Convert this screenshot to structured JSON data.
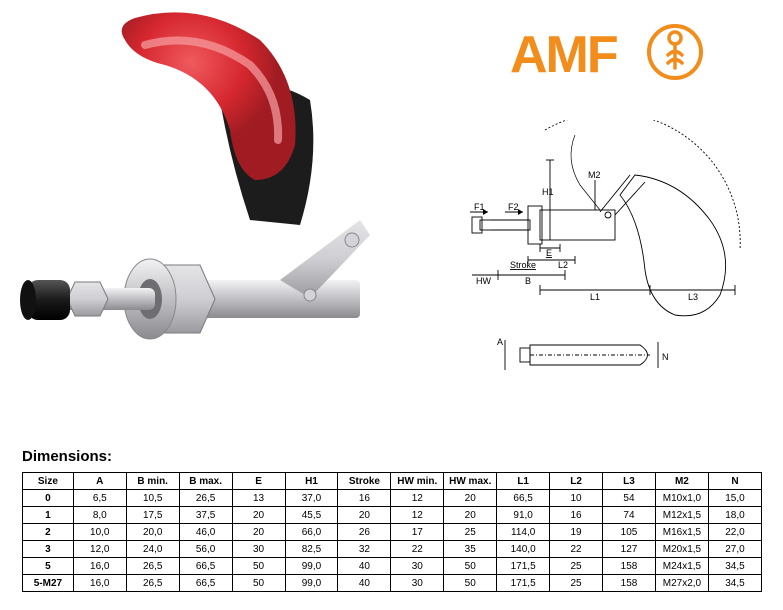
{
  "logo": {
    "text": "AMF",
    "text_color": "#f28c1a",
    "circle_stroke": "#f28c1a",
    "icon_stroke": "#f28c1a",
    "font_family": "Arial Black, Arial, sans-serif"
  },
  "product": {
    "handle_color": "#d6272f",
    "grip_color": "#1a1a1a",
    "metal_light": "#e8e8ea",
    "metal_mid": "#b9b9bd",
    "metal_dark": "#8d8d92",
    "tip_color": "#2a2a2a",
    "rivet_color": "#c4c4c8"
  },
  "drawing": {
    "line_color": "#000000",
    "line_width": 0.9,
    "hatch_color": "#000000",
    "arc_dash": "2,2",
    "labels": {
      "H1": "H1",
      "M2": "M2",
      "F1": "F1",
      "F2": "F2",
      "E": "E",
      "Stroke": "Stroke",
      "L2": "L2",
      "HW": "HW",
      "B": "B",
      "L1": "L1",
      "L3": "L3",
      "A": "A",
      "N": "N"
    },
    "label_fontsize": 9
  },
  "table": {
    "title": "Dimensions:",
    "columns": [
      "Size",
      "A",
      "B min.",
      "B max.",
      "E",
      "H1",
      "Stroke",
      "HW min.",
      "HW max.",
      "L1",
      "L2",
      "L3",
      "M2",
      "N"
    ],
    "rows": [
      [
        "0",
        "6,5",
        "10,5",
        "26,5",
        "13",
        "37,0",
        "16",
        "12",
        "20",
        "66,5",
        "10",
        "54",
        "M10x1,0",
        "15,0"
      ],
      [
        "1",
        "8,0",
        "17,5",
        "37,5",
        "20",
        "45,5",
        "20",
        "12",
        "20",
        "91,0",
        "16",
        "74",
        "M12x1,5",
        "18,0"
      ],
      [
        "2",
        "10,0",
        "20,0",
        "46,0",
        "20",
        "66,0",
        "26",
        "17",
        "25",
        "114,0",
        "19",
        "105",
        "M16x1,5",
        "22,0"
      ],
      [
        "3",
        "12,0",
        "24,0",
        "56,0",
        "30",
        "82,5",
        "32",
        "22",
        "35",
        "140,0",
        "22",
        "127",
        "M20x1,5",
        "27,0"
      ],
      [
        "5",
        "16,0",
        "26,5",
        "66,5",
        "50",
        "99,0",
        "40",
        "30",
        "50",
        "171,5",
        "25",
        "158",
        "M24x1,5",
        "34,5"
      ],
      [
        "5-M27",
        "16,0",
        "26,5",
        "66,5",
        "50",
        "99,0",
        "40",
        "30",
        "50",
        "171,5",
        "25",
        "158",
        "M27x2,0",
        "34,5"
      ]
    ],
    "border_color": "#000000",
    "font_size": 10
  }
}
